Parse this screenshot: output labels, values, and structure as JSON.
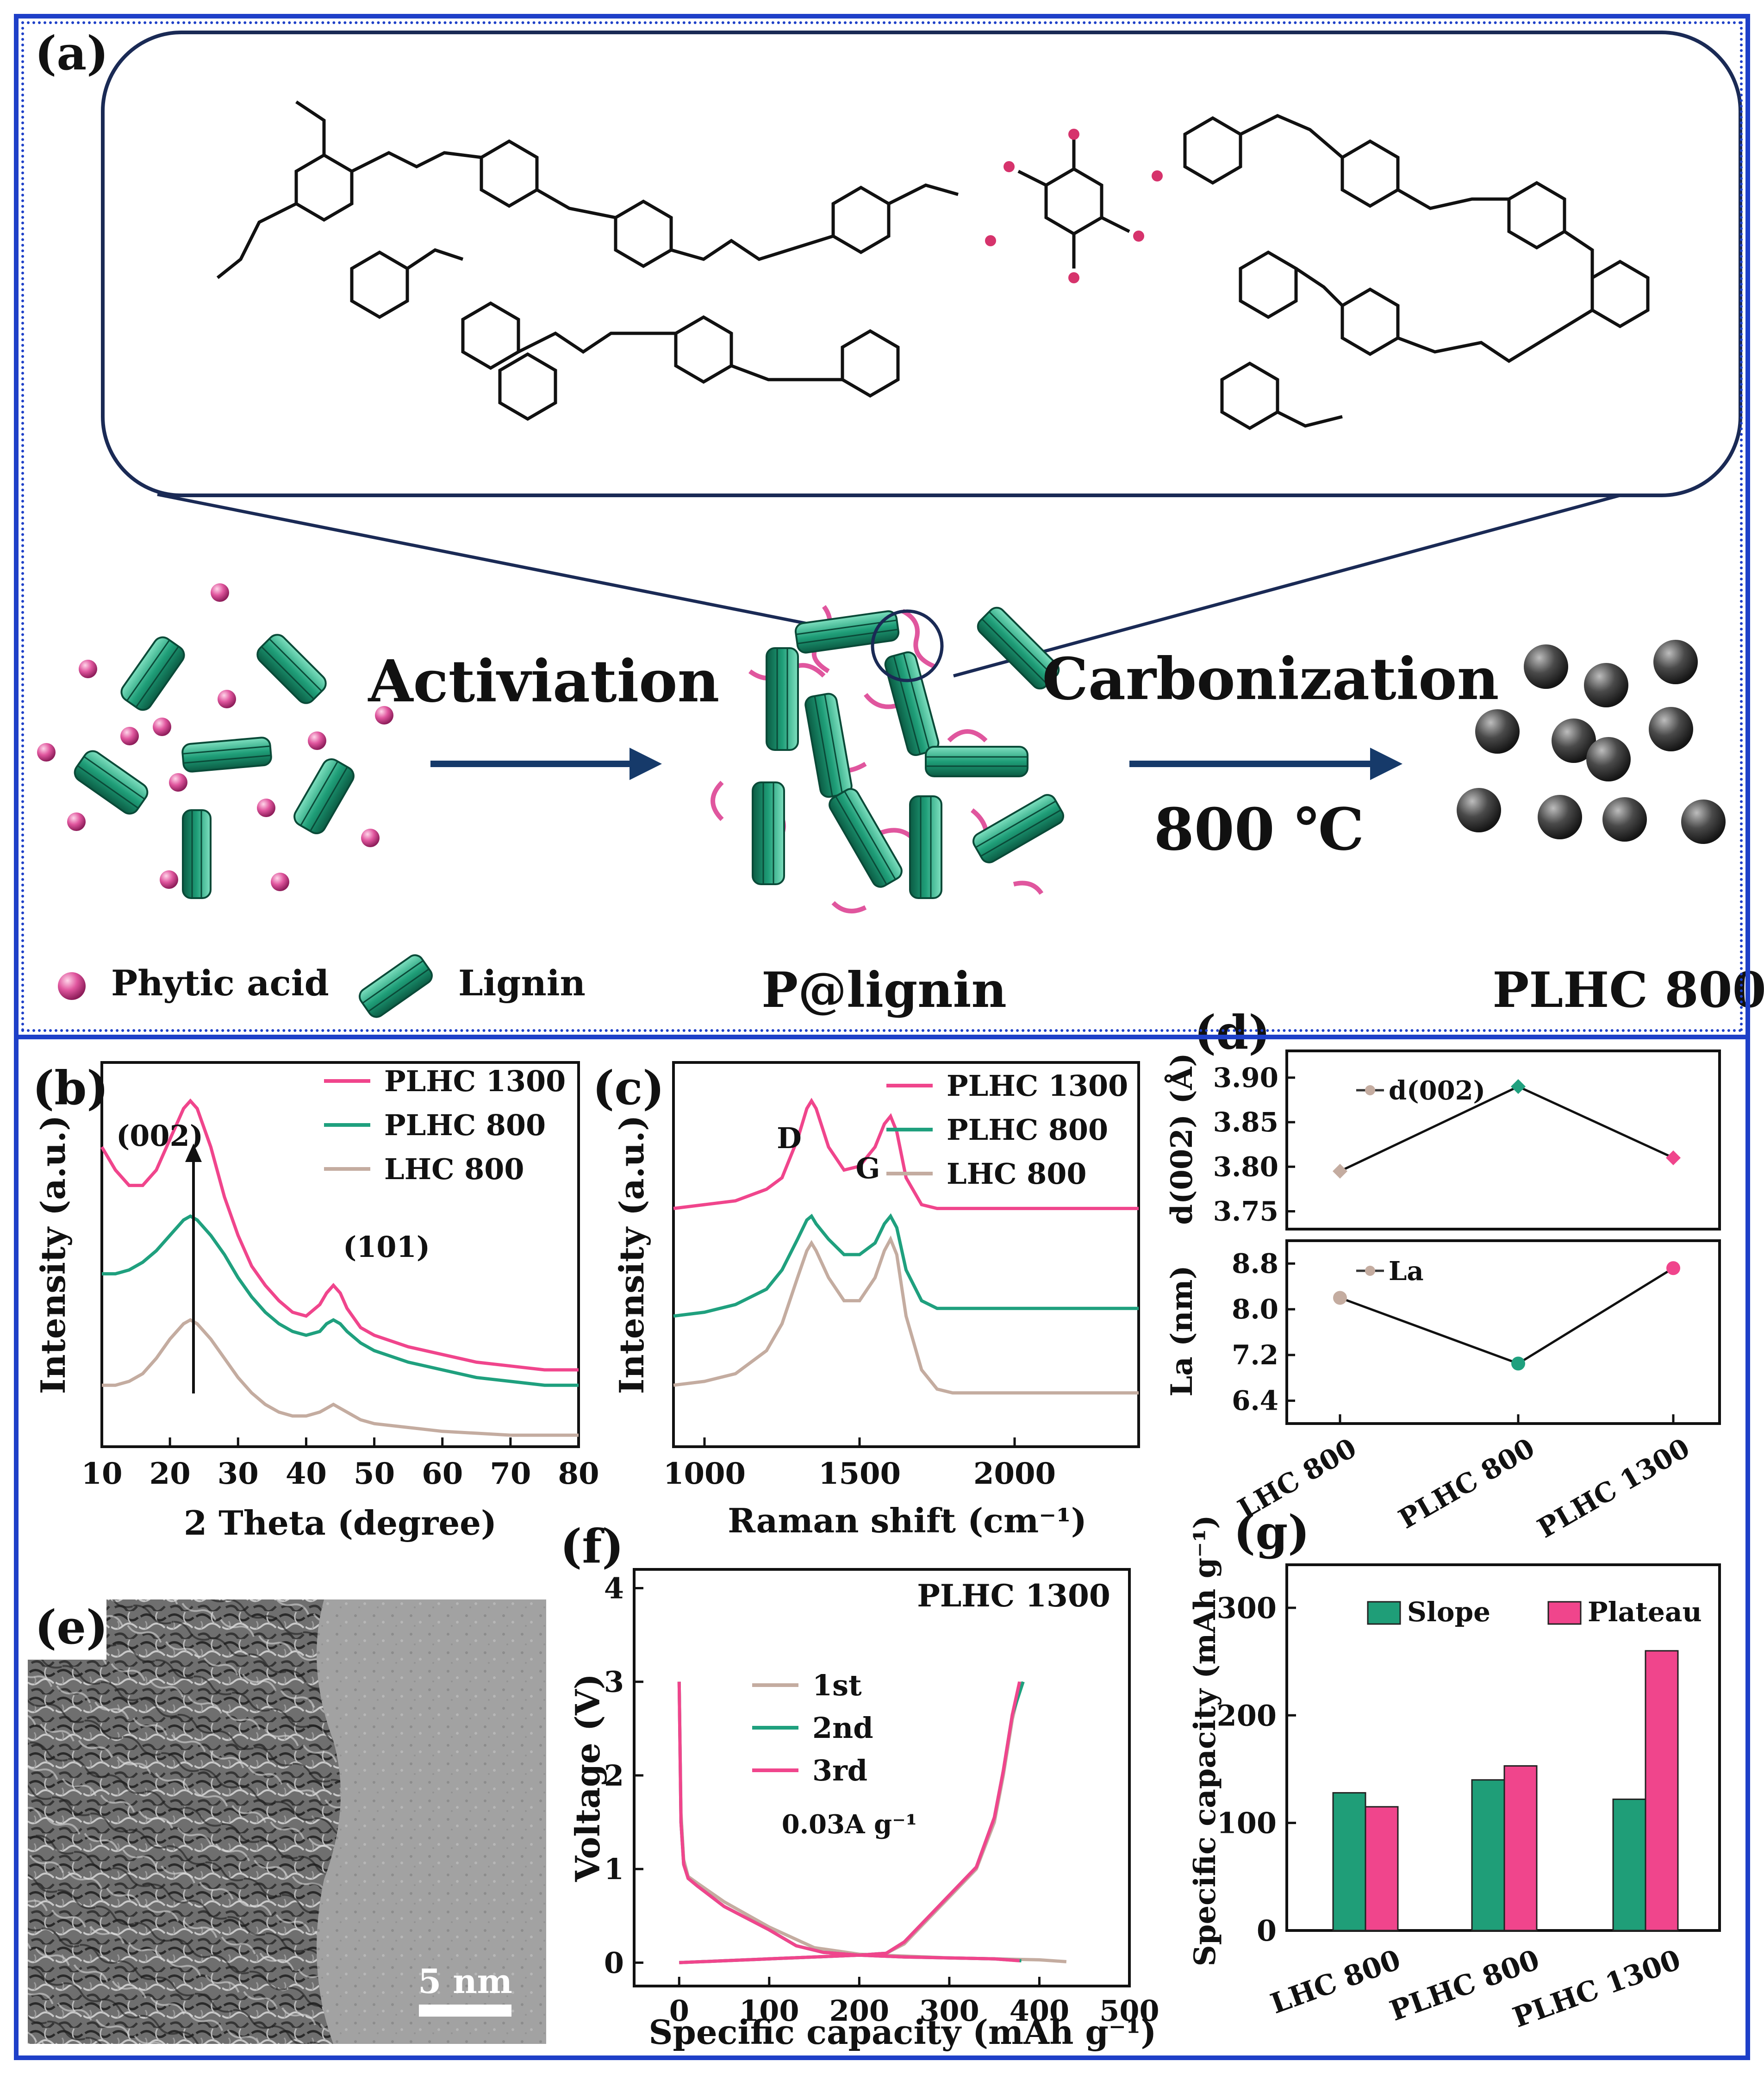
{
  "panel_labels": {
    "a": "(a)",
    "b": "(b)",
    "c": "(c)",
    "d": "(d)",
    "e": "(e)",
    "f": "(f)",
    "g": "(g)"
  },
  "scheme": {
    "step1": "Activiation",
    "step2": "Carbonization",
    "temperature": "800 ℃",
    "legend_phytic": "Phytic acid",
    "legend_lignin": "Lignin",
    "product1": "P@lignin",
    "product2": "PLHC 800",
    "colors": {
      "lignin": "#1f9e78",
      "phytic": "#e0569e",
      "carbon": "#3a3a3a",
      "arrow": "#163a6a",
      "frame": "#1e40c8"
    }
  },
  "tem": {
    "scale_bar": "5 nm"
  },
  "chart_data": [
    {
      "id": "b",
      "type": "line",
      "xlabel": "2 Theta (degree)",
      "ylabel": "Intensity (a.u.)",
      "xlim": [
        10,
        80
      ],
      "xticks": [
        10,
        20,
        30,
        40,
        50,
        60,
        70,
        80
      ],
      "peak_labels": [
        "(002)",
        "(101)"
      ],
      "legend_position": "top-right",
      "series": [
        {
          "name": "PLHC 1300",
          "color": "#f0458c",
          "x": [
            10,
            12,
            14,
            16,
            18,
            20,
            22,
            23,
            24,
            26,
            28,
            30,
            32,
            34,
            36,
            38,
            40,
            42,
            43,
            44,
            45,
            46,
            48,
            50,
            55,
            60,
            65,
            70,
            75,
            80
          ],
          "y": [
            0.78,
            0.72,
            0.68,
            0.68,
            0.72,
            0.8,
            0.88,
            0.9,
            0.88,
            0.78,
            0.65,
            0.55,
            0.47,
            0.42,
            0.38,
            0.35,
            0.34,
            0.37,
            0.4,
            0.42,
            0.4,
            0.36,
            0.31,
            0.29,
            0.26,
            0.24,
            0.22,
            0.21,
            0.2,
            0.2
          ]
        },
        {
          "name": "PLHC 800",
          "color": "#1fa07e",
          "x": [
            10,
            12,
            14,
            16,
            18,
            20,
            22,
            23,
            24,
            26,
            28,
            30,
            32,
            34,
            36,
            38,
            40,
            42,
            43,
            44,
            45,
            46,
            48,
            50,
            55,
            60,
            65,
            70,
            75,
            80
          ],
          "y": [
            0.45,
            0.45,
            0.46,
            0.48,
            0.51,
            0.55,
            0.59,
            0.6,
            0.59,
            0.55,
            0.5,
            0.44,
            0.39,
            0.35,
            0.32,
            0.3,
            0.29,
            0.3,
            0.32,
            0.33,
            0.32,
            0.3,
            0.27,
            0.25,
            0.22,
            0.2,
            0.18,
            0.17,
            0.16,
            0.16
          ]
        },
        {
          "name": "LHC 800",
          "color": "#c4aca0",
          "x": [
            10,
            12,
            14,
            16,
            18,
            20,
            22,
            23,
            24,
            26,
            28,
            30,
            32,
            34,
            36,
            38,
            40,
            42,
            43,
            44,
            45,
            46,
            48,
            50,
            55,
            60,
            65,
            70,
            75,
            80
          ],
          "y": [
            0.16,
            0.16,
            0.17,
            0.19,
            0.23,
            0.28,
            0.32,
            0.33,
            0.32,
            0.28,
            0.23,
            0.18,
            0.14,
            0.11,
            0.09,
            0.08,
            0.08,
            0.09,
            0.1,
            0.11,
            0.1,
            0.09,
            0.07,
            0.06,
            0.05,
            0.04,
            0.035,
            0.03,
            0.03,
            0.03
          ]
        }
      ]
    },
    {
      "id": "c",
      "type": "line",
      "xlabel": "Raman shift (cm⁻¹)",
      "ylabel": "Intensity (a.u.)",
      "xlim": [
        900,
        2400
      ],
      "xticks": [
        1000,
        1500,
        2000
      ],
      "peak_labels": [
        "D",
        "G"
      ],
      "legend_position": "top-right",
      "series": [
        {
          "name": "PLHC 1300",
          "color": "#f0458c",
          "x": [
            900,
            1000,
            1100,
            1200,
            1250,
            1300,
            1330,
            1345,
            1360,
            1400,
            1450,
            1500,
            1550,
            1580,
            1600,
            1620,
            1650,
            1700,
            1750,
            1800,
            2000,
            2200,
            2400
          ],
          "y": [
            0.62,
            0.63,
            0.64,
            0.67,
            0.7,
            0.8,
            0.88,
            0.9,
            0.88,
            0.78,
            0.72,
            0.73,
            0.78,
            0.84,
            0.86,
            0.82,
            0.7,
            0.63,
            0.62,
            0.62,
            0.62,
            0.62,
            0.62
          ]
        },
        {
          "name": "PLHC 800",
          "color": "#1fa07e",
          "x": [
            900,
            1000,
            1100,
            1200,
            1250,
            1300,
            1330,
            1345,
            1360,
            1400,
            1450,
            1500,
            1550,
            1580,
            1600,
            1620,
            1650,
            1700,
            1750,
            1800,
            2000,
            2200,
            2400
          ],
          "y": [
            0.34,
            0.35,
            0.37,
            0.41,
            0.46,
            0.54,
            0.59,
            0.6,
            0.58,
            0.54,
            0.5,
            0.5,
            0.53,
            0.58,
            0.6,
            0.57,
            0.46,
            0.38,
            0.36,
            0.36,
            0.36,
            0.36,
            0.36
          ]
        },
        {
          "name": "LHC 800",
          "color": "#c4aca0",
          "x": [
            900,
            1000,
            1100,
            1200,
            1250,
            1300,
            1330,
            1345,
            1360,
            1400,
            1450,
            1500,
            1550,
            1580,
            1600,
            1620,
            1650,
            1700,
            1750,
            1800,
            2000,
            2200,
            2400
          ],
          "y": [
            0.16,
            0.17,
            0.19,
            0.25,
            0.32,
            0.44,
            0.51,
            0.53,
            0.51,
            0.44,
            0.38,
            0.38,
            0.44,
            0.51,
            0.54,
            0.5,
            0.34,
            0.2,
            0.15,
            0.14,
            0.14,
            0.14,
            0.14
          ]
        }
      ]
    },
    {
      "id": "d-top",
      "type": "line",
      "ylabel": "d(002) (Å)",
      "legend": "d(002)",
      "categories": [
        "LHC 800",
        "PLHC 800",
        "PLHC 1300"
      ],
      "ylim": [
        3.73,
        3.93
      ],
      "yticks": [
        3.75,
        3.8,
        3.85,
        3.9
      ],
      "values": [
        3.795,
        3.89,
        3.81
      ],
      "point_colors": [
        "#c4aca0",
        "#1fa07e",
        "#f0458c"
      ]
    },
    {
      "id": "d-bottom",
      "type": "line",
      "ylabel": "La (nm)",
      "legend": "La",
      "categories": [
        "LHC 800",
        "PLHC 800",
        "PLHC 1300"
      ],
      "ylim": [
        6.0,
        9.2
      ],
      "yticks": [
        6.4,
        7.2,
        8.0,
        8.8
      ],
      "values": [
        8.2,
        7.05,
        8.72
      ],
      "point_colors": [
        "#c4aca0",
        "#1fa07e",
        "#f0458c"
      ]
    },
    {
      "id": "f",
      "type": "line",
      "title": "PLHC 1300",
      "annotation": "0.03A g⁻¹",
      "xlabel": "Specific capacity (mAh g⁻¹)",
      "ylabel": "Voltage (V)",
      "xlim": [
        -50,
        500
      ],
      "ylim": [
        -0.25,
        4.2
      ],
      "xticks": [
        0,
        100,
        200,
        300,
        400,
        500
      ],
      "yticks": [
        0,
        1,
        2,
        3,
        4
      ],
      "legend_position": "center",
      "series": [
        {
          "name": "1st",
          "color": "#c4aca0",
          "discharge": {
            "x": [
              0,
              2,
              5,
              10,
              20,
              50,
              100,
              150,
              200,
              250,
              300,
              350,
              400,
              430
            ],
            "y": [
              3.0,
              1.6,
              1.1,
              0.92,
              0.85,
              0.65,
              0.38,
              0.16,
              0.09,
              0.07,
              0.05,
              0.04,
              0.03,
              0.01
            ]
          },
          "charge": {
            "x": [
              0,
              50,
              100,
              150,
              200,
              230,
              250,
              270,
              300,
              330,
              350,
              360,
              370,
              380
            ],
            "y": [
              0.0,
              0.02,
              0.04,
              0.06,
              0.08,
              0.1,
              0.2,
              0.4,
              0.7,
              1.0,
              1.5,
              2.0,
              2.6,
              3.0
            ]
          }
        },
        {
          "name": "2nd",
          "color": "#1fa07e",
          "discharge": {
            "x": [
              0,
              2,
              5,
              10,
              20,
              50,
              100,
              130,
              160,
              200,
              250,
              300,
              350,
              380
            ],
            "y": [
              3.0,
              1.5,
              1.05,
              0.9,
              0.82,
              0.6,
              0.35,
              0.18,
              0.11,
              0.08,
              0.06,
              0.05,
              0.04,
              0.02
            ]
          },
          "charge": {
            "x": [
              0,
              50,
              100,
              150,
              200,
              230,
              250,
              270,
              300,
              330,
              350,
              360,
              370,
              382
            ],
            "y": [
              0.0,
              0.02,
              0.04,
              0.06,
              0.08,
              0.1,
              0.22,
              0.42,
              0.72,
              1.02,
              1.55,
              2.05,
              2.65,
              3.0
            ]
          }
        },
        {
          "name": "3rd",
          "color": "#f0458c",
          "discharge": {
            "x": [
              0,
              2,
              5,
              10,
              20,
              50,
              100,
              130,
              160,
              200,
              250,
              300,
              350,
              378
            ],
            "y": [
              3.0,
              1.5,
              1.05,
              0.9,
              0.82,
              0.6,
              0.35,
              0.18,
              0.11,
              0.08,
              0.06,
              0.05,
              0.04,
              0.02
            ]
          },
          "charge": {
            "x": [
              0,
              50,
              100,
              150,
              200,
              230,
              250,
              270,
              300,
              330,
              350,
              360,
              370,
              378
            ],
            "y": [
              0.0,
              0.02,
              0.04,
              0.06,
              0.08,
              0.1,
              0.22,
              0.42,
              0.72,
              1.02,
              1.55,
              2.05,
              2.65,
              3.0
            ]
          }
        }
      ]
    },
    {
      "id": "g",
      "type": "bar",
      "ylabel": "Specific capacity (mAh g⁻¹)",
      "categories": [
        "LHC 800",
        "PLHC 800",
        "PLHC 1300"
      ],
      "ylim": [
        0,
        340
      ],
      "yticks": [
        0,
        100,
        200,
        300
      ],
      "legend_position": "top",
      "series": [
        {
          "name": "Slope",
          "color": "#1f9e78",
          "values": [
            128,
            140,
            122
          ]
        },
        {
          "name": "Plateau",
          "color": "#f0458c",
          "values": [
            115,
            153,
            260
          ]
        }
      ]
    }
  ]
}
